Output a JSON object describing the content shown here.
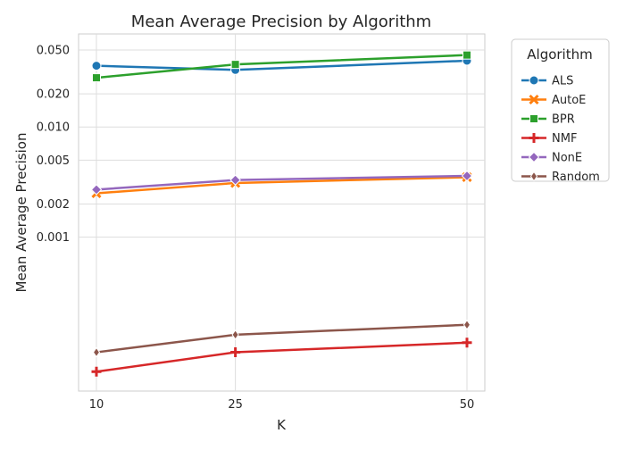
{
  "chart_data": {
    "type": "line",
    "title": "Mean Average Precision by Algorithm",
    "xlabel": "K",
    "ylabel": "Mean Average Precision",
    "y_scale": "log",
    "ylim": [
      4e-05,
      0.07
    ],
    "grid": true,
    "x": [
      10,
      25,
      50
    ],
    "x_ticks": [
      {
        "value": 10,
        "label": "10"
      },
      {
        "value": 25,
        "label": "25"
      },
      {
        "value": 50,
        "label": "50"
      }
    ],
    "y_ticks": [
      {
        "value": 0.05,
        "label": "0.050"
      },
      {
        "value": 0.02,
        "label": "0.020"
      },
      {
        "value": 0.01,
        "label": "0.010"
      },
      {
        "value": 0.005,
        "label": "0.005"
      },
      {
        "value": 0.002,
        "label": "0.002"
      },
      {
        "value": 0.001,
        "label": "0.001"
      }
    ],
    "legend": {
      "title": "Algorithm",
      "placement": "outside-right"
    },
    "series": [
      {
        "name": "ALS",
        "values": [
          0.036,
          0.033,
          0.04
        ],
        "color": "#1f77b4",
        "marker": "circle"
      },
      {
        "name": "AutoE",
        "values": [
          0.0025,
          0.0031,
          0.0035
        ],
        "color": "#ff7f0e",
        "marker": "x"
      },
      {
        "name": "BPR",
        "values": [
          0.028,
          0.037,
          0.045
        ],
        "color": "#2ca02c",
        "marker": "square"
      },
      {
        "name": "NMF",
        "values": [
          6e-05,
          9e-05,
          0.00011
        ],
        "color": "#d62728",
        "marker": "plus"
      },
      {
        "name": "NonE",
        "values": [
          0.0027,
          0.0033,
          0.0036
        ],
        "color": "#9467bd",
        "marker": "diamond"
      },
      {
        "name": "Random",
        "values": [
          9e-05,
          0.00013,
          0.00016
        ],
        "color": "#8c564b",
        "marker": "thin-diamond"
      }
    ]
  }
}
